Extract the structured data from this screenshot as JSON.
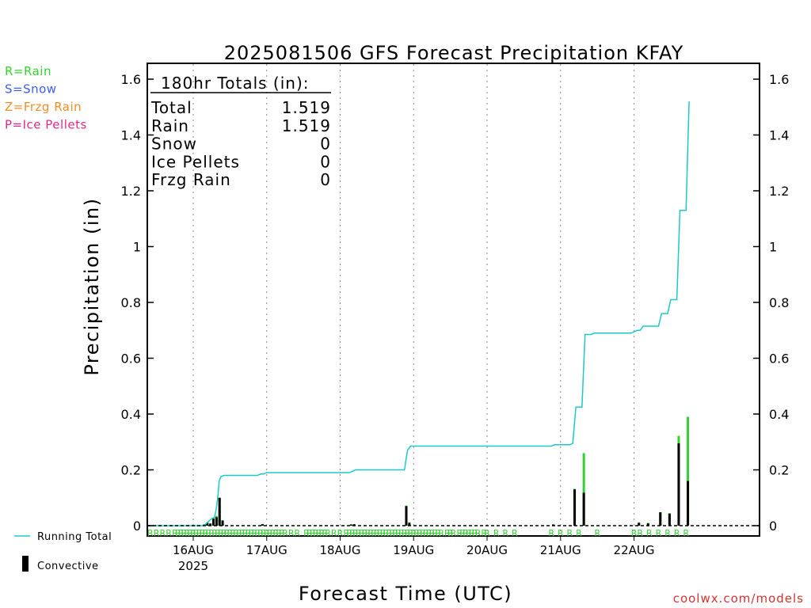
{
  "chart_data": {
    "type": "bar",
    "title": "2025081506 GFS Forecast Precipitation KFAY",
    "xlabel": "Forecast Time (UTC)",
    "ylabel": "Precipitation (in)",
    "ylim": [
      0,
      1.65
    ],
    "xlim_hours": [
      -15,
      185
    ],
    "y_ticks": [
      "0",
      "0.2",
      "0.4",
      "0.6",
      "0.8",
      "1",
      "1.2",
      "1.4",
      "1.6"
    ],
    "y_tick_values": [
      0,
      0.2,
      0.4,
      0.6,
      0.8,
      1.0,
      1.2,
      1.4,
      1.6
    ],
    "x_ticks": [
      {
        "hour": 0,
        "label": "16AUG",
        "sub": "2025"
      },
      {
        "hour": 24,
        "label": "17AUG",
        "sub": ""
      },
      {
        "hour": 48,
        "label": "18AUG",
        "sub": ""
      },
      {
        "hour": 72,
        "label": "19AUG",
        "sub": ""
      },
      {
        "hour": 96,
        "label": "20AUG",
        "sub": ""
      },
      {
        "hour": 120,
        "label": "21AUG",
        "sub": ""
      },
      {
        "hour": 144,
        "label": "22AUG",
        "sub": ""
      }
    ],
    "grid": "vertical dotted at day boundaries",
    "legend": {
      "types": [
        {
          "label": "R=Rain",
          "color": "#33d233"
        },
        {
          "label": "S=Snow",
          "color": "#3c5ef0"
        },
        {
          "label": "Z=Frzg Rain",
          "color": "#f08c28"
        },
        {
          "label": "P=Ice Pellets",
          "color": "#e6288c"
        }
      ],
      "running_total_label": "Running Total",
      "convective_label": "Convective"
    },
    "totals": {
      "header": "180hr Totals (in):",
      "rows": [
        {
          "label": "Total",
          "value": "1.519"
        },
        {
          "label": "Rain",
          "value": "1.519"
        },
        {
          "label": "Snow",
          "value": "0"
        },
        {
          "label": "Ice Pellets",
          "value": "0"
        },
        {
          "label": "Frzg Rain",
          "value": "0"
        }
      ]
    },
    "series": [
      {
        "name": "Running Total",
        "color": "#1ec8c8",
        "points": [
          [
            -15,
            0
          ],
          [
            3,
            0
          ],
          [
            4,
            0.005
          ],
          [
            5,
            0.015
          ],
          [
            6,
            0.025
          ],
          [
            7,
            0.03
          ],
          [
            7.5,
            0.06
          ],
          [
            8,
            0.1
          ],
          [
            8.5,
            0.16
          ],
          [
            9,
            0.175
          ],
          [
            10,
            0.18
          ],
          [
            21,
            0.18
          ],
          [
            22,
            0.185
          ],
          [
            23,
            0.185
          ],
          [
            24,
            0.19
          ],
          [
            51,
            0.19
          ],
          [
            52,
            0.195
          ],
          [
            53,
            0.2
          ],
          [
            54,
            0.2
          ],
          [
            69,
            0.2
          ],
          [
            70,
            0.27
          ],
          [
            71,
            0.285
          ],
          [
            72,
            0.285
          ],
          [
            117,
            0.285
          ],
          [
            118,
            0.29
          ],
          [
            121,
            0.29
          ],
          [
            123,
            0.29
          ],
          [
            124,
            0.295
          ],
          [
            125,
            0.425
          ],
          [
            127,
            0.425
          ],
          [
            128,
            0.685
          ],
          [
            130,
            0.685
          ],
          [
            131,
            0.69
          ],
          [
            143,
            0.69
          ],
          [
            145,
            0.7
          ],
          [
            146,
            0.7
          ],
          [
            147,
            0.715
          ],
          [
            152,
            0.715
          ],
          [
            153,
            0.76
          ],
          [
            155,
            0.76
          ],
          [
            156,
            0.81
          ],
          [
            158,
            0.81
          ],
          [
            159,
            1.13
          ],
          [
            161,
            1.13
          ],
          [
            162,
            1.52
          ]
        ]
      },
      {
        "name": "Precip",
        "color": "#33d233",
        "bars": [
          [
            3.6,
            0.006
          ],
          [
            4.6,
            0.012
          ],
          [
            5.6,
            0.009
          ],
          [
            6.6,
            0.028
          ],
          [
            7.6,
            0.035
          ],
          [
            8.6,
            0.1
          ],
          [
            9.6,
            0.02
          ],
          [
            22.6,
            0.006
          ],
          [
            51.6,
            0.005
          ],
          [
            52.6,
            0.006
          ],
          [
            69.6,
            0.072
          ],
          [
            70.6,
            0.012
          ],
          [
            117.6,
            0.005
          ],
          [
            124.6,
            0.132
          ],
          [
            127.6,
            0.26
          ],
          [
            145.6,
            0.012
          ],
          [
            148.6,
            0.01
          ],
          [
            152.6,
            0.048
          ],
          [
            155.6,
            0.045
          ],
          [
            158.6,
            0.322
          ],
          [
            161.6,
            0.39
          ]
        ]
      },
      {
        "name": "Convective",
        "color": "#000000",
        "bars": [
          [
            3.6,
            0.004
          ],
          [
            4.6,
            0.01
          ],
          [
            5.6,
            0.007
          ],
          [
            6.6,
            0.025
          ],
          [
            7.6,
            0.03
          ],
          [
            8.6,
            0.1
          ],
          [
            9.6,
            0.018
          ],
          [
            22.6,
            0.005
          ],
          [
            51.6,
            0.004
          ],
          [
            52.6,
            0.005
          ],
          [
            69.6,
            0.07
          ],
          [
            70.6,
            0.01
          ],
          [
            117.6,
            0.004
          ],
          [
            124.6,
            0.13
          ],
          [
            127.6,
            0.118
          ],
          [
            145.6,
            0.01
          ],
          [
            148.6,
            0.008
          ],
          [
            152.6,
            0.048
          ],
          [
            155.6,
            0.043
          ],
          [
            158.6,
            0.295
          ],
          [
            161.6,
            0.16
          ]
        ]
      }
    ],
    "rain_markers": {
      "symbol": "R",
      "hours": [
        -14,
        -12,
        -10,
        -8,
        -6,
        -5,
        -4,
        -3,
        -2,
        -1,
        0,
        1,
        2,
        3,
        4,
        5,
        6,
        7,
        8,
        9,
        10,
        11,
        12,
        13,
        14,
        15,
        16,
        17,
        18,
        19,
        20,
        21,
        22,
        23,
        24,
        25,
        26,
        27,
        28,
        29,
        30,
        32,
        34,
        37,
        38,
        39,
        40,
        41,
        42,
        43,
        44,
        46,
        48,
        50,
        51,
        52,
        53,
        54,
        55,
        56,
        57,
        58,
        59,
        60,
        61,
        62,
        63,
        64,
        65,
        66,
        67,
        68,
        69,
        70,
        71,
        72,
        73,
        74,
        75,
        76,
        77,
        78,
        79,
        80,
        81,
        83,
        84,
        85,
        87,
        88,
        89,
        90,
        91,
        92,
        93,
        95,
        96,
        99,
        102,
        105,
        117,
        120,
        123,
        126,
        132,
        144,
        146,
        149,
        152,
        155,
        158,
        161
      ]
    }
  },
  "footer": {
    "credit": "coolwx.com/models"
  }
}
